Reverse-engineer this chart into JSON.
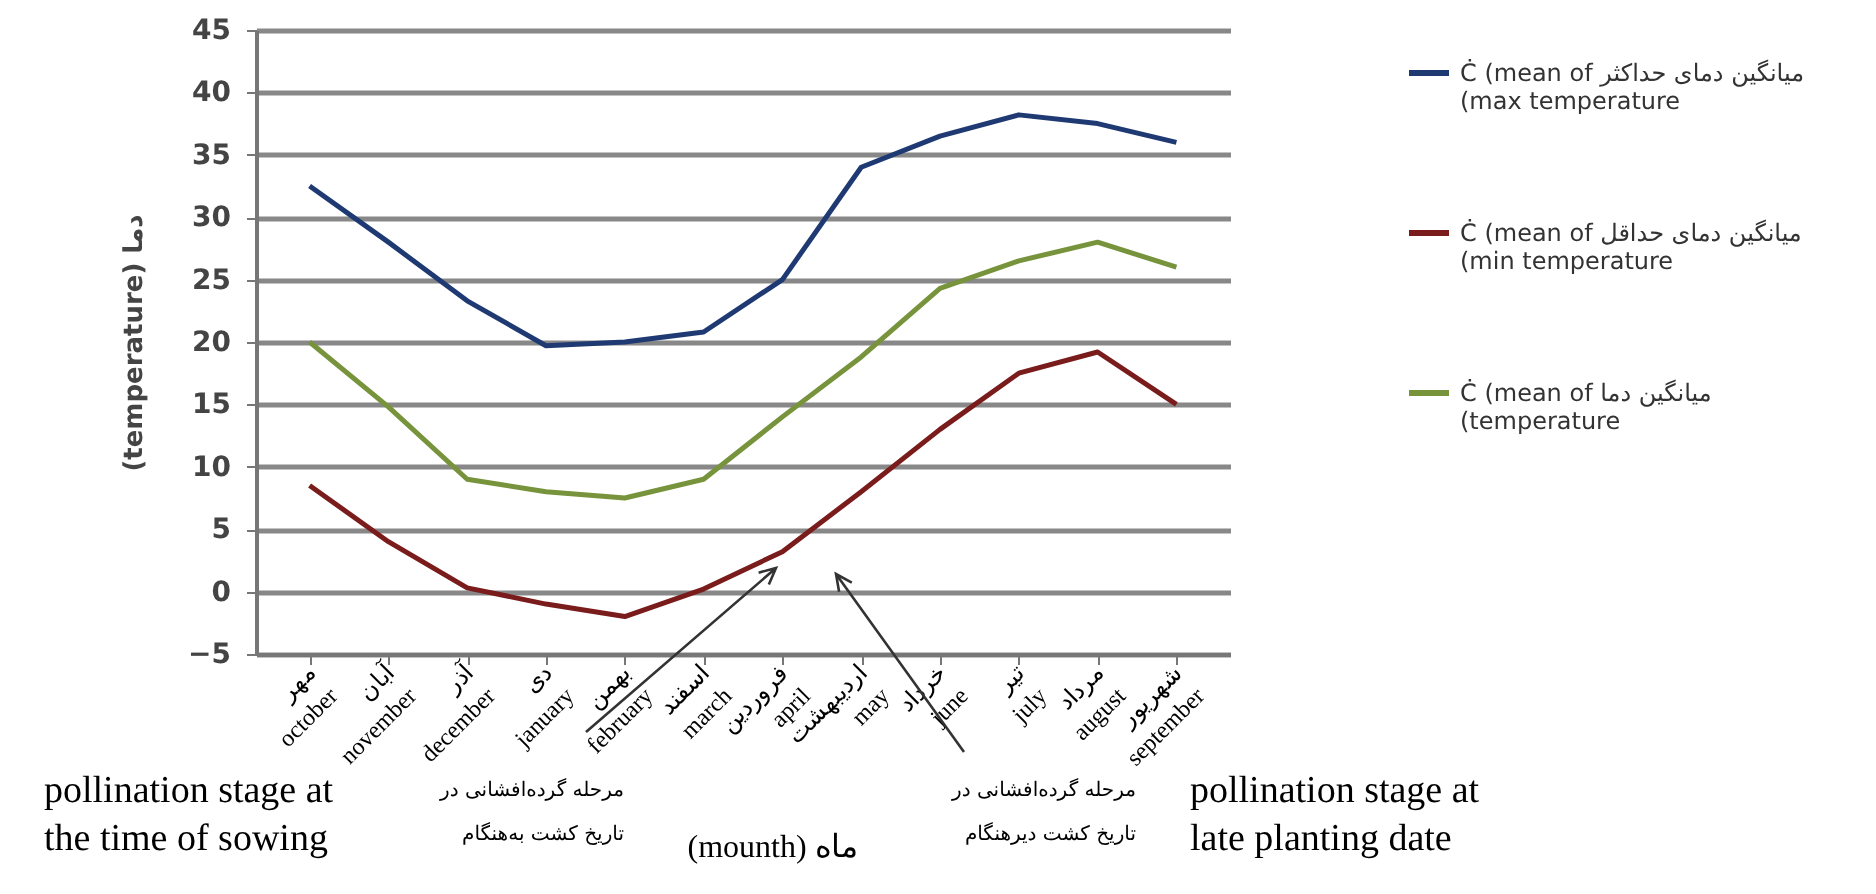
{
  "chart_data": {
    "type": "line",
    "xlabel": "(mounth) ماه",
    "ylabel": "(temperature) دما",
    "categories": [
      "مهر\noctober",
      "آبان\nnovember",
      "آذر\ndecember",
      "دی\njanuary",
      "بهمن\nfebruary",
      "اسفند\nmarch",
      "فروردین\napril",
      "اردیبهشت\nmay",
      "خرداد\njune",
      "تیر\njuly",
      "مرداد\naugust",
      "شهریور\nseptember"
    ],
    "series": [
      {
        "name": "Ċ (mean of میانگین دمای حداکثر\n(max temperature",
        "color": "#1f3a73",
        "values": [
          32.5,
          28,
          23.3,
          19.7,
          20,
          20.8,
          25,
          34,
          36.5,
          38.2,
          37.5,
          36
        ]
      },
      {
        "name": "Ċ (mean of میانگین دمای حداقل\n(min temperature",
        "color": "#7a1c1c",
        "values": [
          8.5,
          4,
          0.3,
          -1,
          -2,
          0.2,
          3.2,
          8,
          13,
          17.5,
          19.2,
          15
        ]
      },
      {
        "name": "Ċ (mean of میانگین دما\n(temperature",
        "color": "#77933c",
        "values": [
          20,
          14.8,
          9,
          8,
          7.5,
          9,
          14,
          18.8,
          24.3,
          26.5,
          28,
          26
        ]
      }
    ],
    "ylim": [
      -5,
      45
    ],
    "yticks": [
      -5,
      0,
      5,
      10,
      15,
      20,
      25,
      30,
      35,
      40,
      45
    ],
    "grid": "y",
    "legend": "right",
    "marker": "none",
    "line_style": "solid",
    "annotations": [
      "pollination stage at\nthe time of sowing",
      "مرحله گرده‌افشانی در\nتاریخ کشت به‌هنگام",
      "مرحله گرده‌افشانی در\nتاریخ کشت دیرهنگام",
      "pollination stage at\nlate planting date"
    ]
  }
}
